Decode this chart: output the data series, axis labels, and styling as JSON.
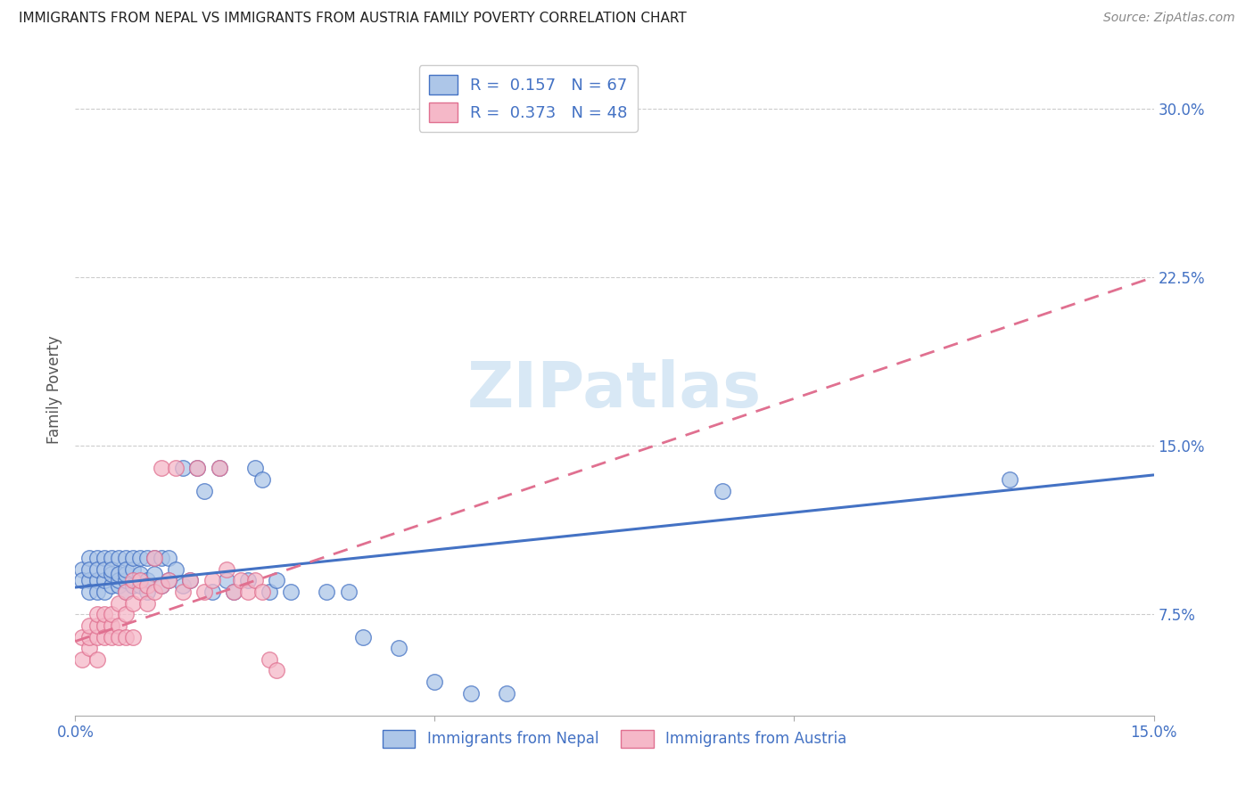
{
  "title": "IMMIGRANTS FROM NEPAL VS IMMIGRANTS FROM AUSTRIA FAMILY POVERTY CORRELATION CHART",
  "source": "Source: ZipAtlas.com",
  "ylabel": "Family Poverty",
  "ytick_labels": [
    "7.5%",
    "15.0%",
    "22.5%",
    "30.0%"
  ],
  "ytick_values": [
    0.075,
    0.15,
    0.225,
    0.3
  ],
  "xlim": [
    0.0,
    0.15
  ],
  "ylim": [
    0.03,
    0.32
  ],
  "legend_nepal_R": "0.157",
  "legend_nepal_N": "67",
  "legend_austria_R": "0.373",
  "legend_austria_N": "48",
  "legend_label_nepal": "Immigrants from Nepal",
  "legend_label_austria": "Immigrants from Austria",
  "color_nepal_fill": "#adc6e8",
  "color_nepal_edge": "#4472c4",
  "color_austria_fill": "#f5b8c8",
  "color_austria_edge": "#e07090",
  "color_nepal_line": "#4472c4",
  "color_austria_line": "#e07090",
  "color_axis_labels": "#4472c4",
  "watermark_color": "#d8e8f5",
  "nepal_x": [
    0.001,
    0.001,
    0.002,
    0.002,
    0.002,
    0.002,
    0.003,
    0.003,
    0.003,
    0.003,
    0.004,
    0.004,
    0.004,
    0.004,
    0.005,
    0.005,
    0.005,
    0.005,
    0.006,
    0.006,
    0.006,
    0.006,
    0.007,
    0.007,
    0.007,
    0.007,
    0.007,
    0.008,
    0.008,
    0.008,
    0.009,
    0.009,
    0.009,
    0.01,
    0.01,
    0.01,
    0.011,
    0.011,
    0.012,
    0.012,
    0.013,
    0.013,
    0.014,
    0.015,
    0.015,
    0.016,
    0.017,
    0.018,
    0.019,
    0.02,
    0.021,
    0.022,
    0.024,
    0.025,
    0.026,
    0.027,
    0.028,
    0.03,
    0.035,
    0.038,
    0.04,
    0.045,
    0.05,
    0.055,
    0.06,
    0.09,
    0.13
  ],
  "nepal_y": [
    0.095,
    0.09,
    0.09,
    0.085,
    0.1,
    0.095,
    0.09,
    0.085,
    0.1,
    0.095,
    0.085,
    0.09,
    0.1,
    0.095,
    0.088,
    0.093,
    0.1,
    0.095,
    0.088,
    0.09,
    0.093,
    0.1,
    0.085,
    0.09,
    0.093,
    0.1,
    0.095,
    0.088,
    0.095,
    0.1,
    0.088,
    0.093,
    0.1,
    0.085,
    0.09,
    0.1,
    0.093,
    0.1,
    0.088,
    0.1,
    0.09,
    0.1,
    0.095,
    0.088,
    0.14,
    0.09,
    0.14,
    0.13,
    0.085,
    0.14,
    0.09,
    0.085,
    0.09,
    0.14,
    0.135,
    0.085,
    0.09,
    0.085,
    0.085,
    0.085,
    0.065,
    0.06,
    0.045,
    0.04,
    0.04,
    0.13,
    0.135
  ],
  "austria_x": [
    0.001,
    0.001,
    0.002,
    0.002,
    0.002,
    0.003,
    0.003,
    0.003,
    0.003,
    0.004,
    0.004,
    0.004,
    0.005,
    0.005,
    0.005,
    0.006,
    0.006,
    0.006,
    0.007,
    0.007,
    0.007,
    0.008,
    0.008,
    0.008,
    0.009,
    0.009,
    0.01,
    0.01,
    0.011,
    0.011,
    0.012,
    0.012,
    0.013,
    0.014,
    0.015,
    0.016,
    0.017,
    0.018,
    0.019,
    0.02,
    0.021,
    0.022,
    0.023,
    0.024,
    0.025,
    0.026,
    0.027,
    0.028
  ],
  "austria_y": [
    0.065,
    0.055,
    0.06,
    0.065,
    0.07,
    0.065,
    0.07,
    0.075,
    0.055,
    0.07,
    0.075,
    0.065,
    0.07,
    0.075,
    0.065,
    0.07,
    0.08,
    0.065,
    0.075,
    0.085,
    0.065,
    0.08,
    0.09,
    0.065,
    0.085,
    0.09,
    0.08,
    0.088,
    0.085,
    0.1,
    0.088,
    0.14,
    0.09,
    0.14,
    0.085,
    0.09,
    0.14,
    0.085,
    0.09,
    0.14,
    0.095,
    0.085,
    0.09,
    0.085,
    0.09,
    0.085,
    0.055,
    0.05
  ],
  "nepal_trendline_x": [
    0.0,
    0.15
  ],
  "nepal_trendline_y": [
    0.087,
    0.137
  ],
  "austria_trendline_x": [
    0.0,
    0.15
  ],
  "austria_trendline_y": [
    0.063,
    0.225
  ]
}
